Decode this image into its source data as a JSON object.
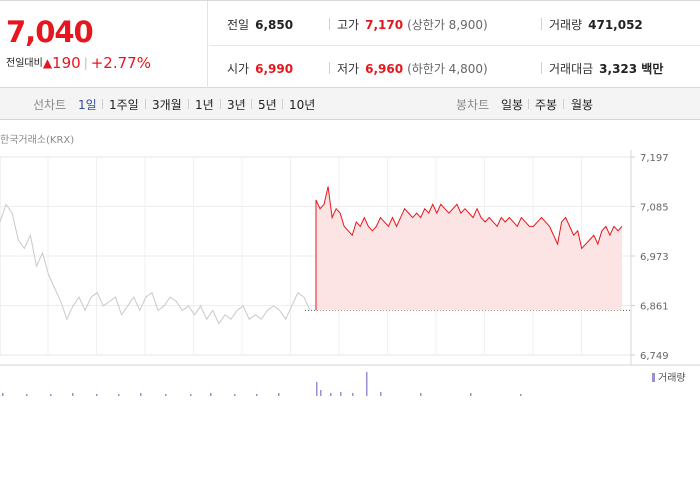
{
  "summary": {
    "price": "7,040",
    "change_label": "전일대비",
    "change_arrow": "▲",
    "change_amount": "190",
    "change_pct": "+2.77%"
  },
  "stats": {
    "prev_label": "전일",
    "prev_value": "6,850",
    "high_label": "고가",
    "high_value": "7,170",
    "upper_limit": "(상한가 8,900)",
    "volume_label": "거래량",
    "volume_value": "471,052",
    "open_label": "시가",
    "open_value": "6,990",
    "low_label": "저가",
    "low_value": "6,960",
    "lower_limit": "(하한가 4,800)",
    "amount_label": "거래대금",
    "amount_value": "3,323 백만"
  },
  "tabs": {
    "line_chart_label": "선차트",
    "periods": [
      "1일",
      "1주일",
      "3개월",
      "1년",
      "3년",
      "5년",
      "10년"
    ],
    "active_period": "1일",
    "candle_label": "봉차트",
    "candles": [
      "일봉",
      "주봉",
      "월봉"
    ]
  },
  "source_label": "한국거래소(KRX)",
  "colors": {
    "up": "#e5161d",
    "prev_day": "#c9c9c9",
    "fill": "#fde4e4",
    "volume": "#9a8fd0"
  },
  "chart_data": {
    "type": "line",
    "ylim": [
      6749,
      7197
    ],
    "yticks": [
      "7,197",
      "7,085",
      "6,973",
      "6,861",
      "6,749"
    ],
    "ytick_values": [
      7197,
      7085,
      6973,
      6861,
      6749
    ],
    "baseline": 6850,
    "legend": "거래량",
    "series": [
      {
        "name": "",
        "values": [
          7050,
          7090,
          7070,
          7010,
          6990,
          7020,
          6950,
          6980,
          6930,
          6900,
          6870,
          6830,
          6860,
          6880,
          6850,
          6880,
          6890,
          6860,
          6870,
          6880,
          6840,
          6860,
          6880,
          6850,
          6880,
          6890,
          6850,
          6860,
          6880,
          6870,
          6850,
          6860,
          6840,
          6860,
          6830,
          6850,
          6820,
          6840,
          6830,
          6850,
          6860,
          6830,
          6840,
          6830,
          6850,
          6860,
          6850,
          6830,
          6860,
          6890,
          6880,
          6850
        ]
      },
      {
        "name": "",
        "values": [
          7100,
          7080,
          7090,
          7130,
          7060,
          7080,
          7070,
          7040,
          7030,
          7020,
          7050,
          7040,
          7060,
          7040,
          7030,
          7040,
          7060,
          7050,
          7040,
          7060,
          7040,
          7060,
          7080,
          7070,
          7060,
          7070,
          7060,
          7080,
          7070,
          7090,
          7070,
          7090,
          7080,
          7070,
          7080,
          7090,
          7070,
          7080,
          7070,
          7060,
          7080,
          7060,
          7050,
          7060,
          7050,
          7040,
          7060,
          7050,
          7060,
          7050,
          7040,
          7060,
          7050,
          7040,
          7040,
          7050,
          7060,
          7050,
          7040,
          7020,
          7000,
          7050,
          7060,
          7040,
          7020,
          7030,
          6990,
          7000,
          7010,
          7020,
          7000,
          7030,
          7040,
          7020,
          7040,
          7030,
          7040
        ]
      }
    ],
    "volume": [
      3,
      2,
      2,
      3,
      2,
      2,
      3,
      2,
      2,
      3,
      2,
      2,
      3,
      14,
      6,
      3,
      4,
      3,
      24,
      4,
      3,
      3,
      2
    ]
  }
}
